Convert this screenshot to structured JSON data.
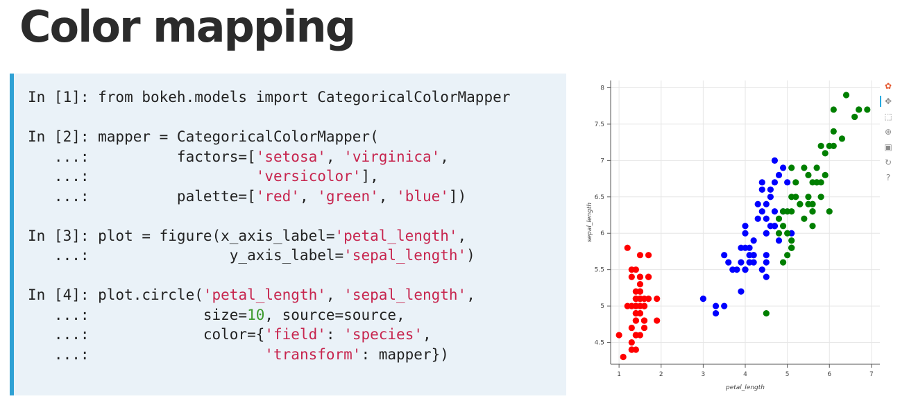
{
  "slide": {
    "title": "Color mapping"
  },
  "code": {
    "lines": [
      [
        {
          "t": "In [1]: from bokeh.models import CategoricalColorMapper"
        }
      ],
      [],
      [
        {
          "t": "In [2]: mapper = CategoricalColorMapper("
        }
      ],
      [
        {
          "t": "   ...:          factors=["
        },
        {
          "t": "'setosa'",
          "c": "str"
        },
        {
          "t": ", "
        },
        {
          "t": "'virginica'",
          "c": "str"
        },
        {
          "t": ","
        }
      ],
      [
        {
          "t": "   ...:                   "
        },
        {
          "t": "'versicolor'",
          "c": "str"
        },
        {
          "t": "],"
        }
      ],
      [
        {
          "t": "   ...:          palette=["
        },
        {
          "t": "'red'",
          "c": "str"
        },
        {
          "t": ", "
        },
        {
          "t": "'green'",
          "c": "str"
        },
        {
          "t": ", "
        },
        {
          "t": "'blue'",
          "c": "str"
        },
        {
          "t": "])"
        }
      ],
      [],
      [
        {
          "t": "In [3]: plot = figure(x_axis_label="
        },
        {
          "t": "'petal_length'",
          "c": "str"
        },
        {
          "t": ","
        }
      ],
      [
        {
          "t": "   ...:                y_axis_label="
        },
        {
          "t": "'sepal_length'",
          "c": "str"
        },
        {
          "t": ")"
        }
      ],
      [],
      [
        {
          "t": "In [4]: plot.circle("
        },
        {
          "t": "'petal_length'",
          "c": "str"
        },
        {
          "t": ", "
        },
        {
          "t": "'sepal_length'",
          "c": "str"
        },
        {
          "t": ","
        }
      ],
      [
        {
          "t": "   ...:             size="
        },
        {
          "t": "10",
          "c": "num"
        },
        {
          "t": ", source=source,"
        }
      ],
      [
        {
          "t": "   ...:             color={"
        },
        {
          "t": "'field'",
          "c": "str"
        },
        {
          "t": ": "
        },
        {
          "t": "'species'",
          "c": "str"
        },
        {
          "t": ","
        }
      ],
      [
        {
          "t": "   ...:                    "
        },
        {
          "t": "'transform'",
          "c": "str"
        },
        {
          "t": ": mapper})"
        }
      ]
    ]
  },
  "chart_data": {
    "type": "scatter",
    "xlabel": "petal_length",
    "ylabel": "sepal_length",
    "xlim": [
      0.8,
      7.2
    ],
    "ylim": [
      4.2,
      8.1
    ],
    "x_ticks": [
      "1",
      "2",
      "3",
      "4",
      "5",
      "6",
      "7"
    ],
    "y_ticks": [
      "4.5",
      "5",
      "5.5",
      "6",
      "6.5",
      "7",
      "7.5",
      "8"
    ],
    "grid": true,
    "series": [
      {
        "color": "#ff0000",
        "points": [
          [
            1.4,
            5.1
          ],
          [
            1.4,
            4.9
          ],
          [
            1.3,
            4.7
          ],
          [
            1.5,
            4.6
          ],
          [
            1.4,
            5.0
          ],
          [
            1.7,
            5.4
          ],
          [
            1.4,
            4.6
          ],
          [
            1.5,
            5.0
          ],
          [
            1.4,
            4.4
          ],
          [
            1.5,
            4.9
          ],
          [
            1.5,
            5.4
          ],
          [
            1.6,
            4.8
          ],
          [
            1.4,
            4.8
          ],
          [
            1.1,
            4.3
          ],
          [
            1.2,
            5.8
          ],
          [
            1.5,
            5.7
          ],
          [
            1.3,
            5.4
          ],
          [
            1.4,
            5.1
          ],
          [
            1.7,
            5.7
          ],
          [
            1.5,
            5.1
          ],
          [
            1.7,
            5.4
          ],
          [
            1.5,
            5.1
          ],
          [
            1.0,
            4.6
          ],
          [
            1.7,
            5.1
          ],
          [
            1.9,
            4.8
          ],
          [
            1.6,
            5.0
          ],
          [
            1.6,
            5.0
          ],
          [
            1.5,
            5.2
          ],
          [
            1.4,
            5.2
          ],
          [
            1.6,
            4.7
          ],
          [
            1.6,
            4.8
          ],
          [
            1.5,
            5.4
          ],
          [
            1.5,
            5.2
          ],
          [
            1.4,
            5.5
          ],
          [
            1.5,
            4.9
          ],
          [
            1.2,
            5.0
          ],
          [
            1.3,
            5.5
          ],
          [
            1.4,
            4.9
          ],
          [
            1.3,
            4.4
          ],
          [
            1.5,
            5.1
          ],
          [
            1.3,
            5.0
          ],
          [
            1.3,
            4.5
          ],
          [
            1.3,
            4.4
          ],
          [
            1.6,
            5.0
          ],
          [
            1.9,
            5.1
          ],
          [
            1.4,
            4.8
          ],
          [
            1.6,
            5.1
          ],
          [
            1.4,
            4.6
          ],
          [
            1.5,
            5.3
          ],
          [
            1.4,
            5.0
          ]
        ]
      },
      {
        "color": "#0000ff",
        "points": [
          [
            4.7,
            7.0
          ],
          [
            4.5,
            6.4
          ],
          [
            4.9,
            6.9
          ],
          [
            4.0,
            5.5
          ],
          [
            4.6,
            6.5
          ],
          [
            4.5,
            5.7
          ],
          [
            4.7,
            6.3
          ],
          [
            3.3,
            4.9
          ],
          [
            4.6,
            6.6
          ],
          [
            3.9,
            5.2
          ],
          [
            3.5,
            5.0
          ],
          [
            4.2,
            5.9
          ],
          [
            4.0,
            6.0
          ],
          [
            4.7,
            6.1
          ],
          [
            3.6,
            5.6
          ],
          [
            4.4,
            6.7
          ],
          [
            4.5,
            5.6
          ],
          [
            4.1,
            5.8
          ],
          [
            4.5,
            6.2
          ],
          [
            3.9,
            5.6
          ],
          [
            4.8,
            5.9
          ],
          [
            4.0,
            6.1
          ],
          [
            4.9,
            6.3
          ],
          [
            4.7,
            6.1
          ],
          [
            4.3,
            6.4
          ],
          [
            4.4,
            6.6
          ],
          [
            4.8,
            6.8
          ],
          [
            5.0,
            6.7
          ],
          [
            4.5,
            6.0
          ],
          [
            3.5,
            5.7
          ],
          [
            3.8,
            5.5
          ],
          [
            3.7,
            5.5
          ],
          [
            3.9,
            5.8
          ],
          [
            5.1,
            6.0
          ],
          [
            4.5,
            5.4
          ],
          [
            4.5,
            6.0
          ],
          [
            4.7,
            6.7
          ],
          [
            4.4,
            6.3
          ],
          [
            4.1,
            5.6
          ],
          [
            4.0,
            5.5
          ],
          [
            4.4,
            5.5
          ],
          [
            4.6,
            6.1
          ],
          [
            4.0,
            5.8
          ],
          [
            3.3,
            5.0
          ],
          [
            4.2,
            5.6
          ],
          [
            4.2,
            5.7
          ],
          [
            4.2,
            5.7
          ],
          [
            4.3,
            6.2
          ],
          [
            3.0,
            5.1
          ],
          [
            4.1,
            5.7
          ]
        ]
      },
      {
        "color": "#007f00",
        "points": [
          [
            6.0,
            6.3
          ],
          [
            5.1,
            5.8
          ],
          [
            5.9,
            7.1
          ],
          [
            5.6,
            6.3
          ],
          [
            5.8,
            6.5
          ],
          [
            6.6,
            7.6
          ],
          [
            4.5,
            4.9
          ],
          [
            6.3,
            7.3
          ],
          [
            5.8,
            6.7
          ],
          [
            6.1,
            7.2
          ],
          [
            5.1,
            6.5
          ],
          [
            5.3,
            6.4
          ],
          [
            5.5,
            6.8
          ],
          [
            5.0,
            5.7
          ],
          [
            5.1,
            5.8
          ],
          [
            5.3,
            6.4
          ],
          [
            5.5,
            6.5
          ],
          [
            6.7,
            7.7
          ],
          [
            6.9,
            7.7
          ],
          [
            5.0,
            6.0
          ],
          [
            5.7,
            6.9
          ],
          [
            4.9,
            5.6
          ],
          [
            6.7,
            7.7
          ],
          [
            4.9,
            6.3
          ],
          [
            5.7,
            6.7
          ],
          [
            6.0,
            7.2
          ],
          [
            4.8,
            6.2
          ],
          [
            4.9,
            6.1
          ],
          [
            5.6,
            6.4
          ],
          [
            5.8,
            7.2
          ],
          [
            6.1,
            7.4
          ],
          [
            6.4,
            7.9
          ],
          [
            5.6,
            6.4
          ],
          [
            5.1,
            6.3
          ],
          [
            5.6,
            6.1
          ],
          [
            6.1,
            7.7
          ],
          [
            5.6,
            6.3
          ],
          [
            5.5,
            6.4
          ],
          [
            4.8,
            6.0
          ],
          [
            5.4,
            6.9
          ],
          [
            5.6,
            6.7
          ],
          [
            5.1,
            6.9
          ],
          [
            5.1,
            5.8
          ],
          [
            5.9,
            6.8
          ],
          [
            5.7,
            6.7
          ],
          [
            5.2,
            6.7
          ],
          [
            5.0,
            6.3
          ],
          [
            5.2,
            6.5
          ],
          [
            5.4,
            6.2
          ],
          [
            5.1,
            5.9
          ]
        ]
      }
    ]
  },
  "toolbar": {
    "tools": [
      {
        "name": "bokeh-logo-icon",
        "glyph": "✿",
        "color": "#e4572e",
        "interactive": false
      },
      {
        "name": "pan-tool-icon",
        "glyph": "✥",
        "color": "#888888",
        "interactive": true,
        "active": true
      },
      {
        "name": "box-zoom-tool-icon",
        "glyph": "⬚",
        "color": "#888888",
        "interactive": true
      },
      {
        "name": "wheel-zoom-tool-icon",
        "glyph": "⊕",
        "color": "#888888",
        "interactive": true
      },
      {
        "name": "save-tool-icon",
        "glyph": "▣",
        "color": "#888888",
        "interactive": true
      },
      {
        "name": "reset-tool-icon",
        "glyph": "↻",
        "color": "#888888",
        "interactive": true
      },
      {
        "name": "help-tool-icon",
        "glyph": "?",
        "color": "#888888",
        "interactive": true
      }
    ]
  }
}
